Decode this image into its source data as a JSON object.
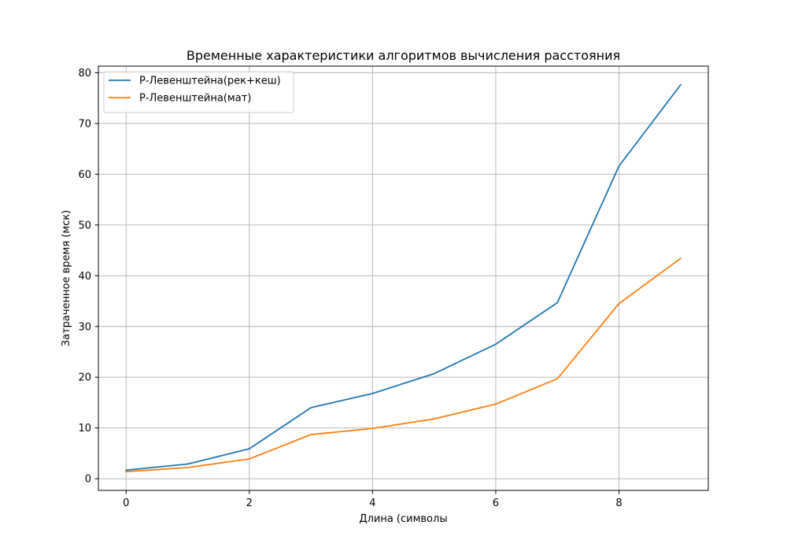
{
  "chart_data": {
    "type": "line",
    "title": "Временные характеристики алгоритмов вычисления расстояния",
    "xlabel": "Длина (символы",
    "ylabel": "Затраченное время (мск)",
    "x": [
      0,
      1,
      2,
      3,
      4,
      5,
      6,
      7,
      8,
      9
    ],
    "xlim": [
      -0.45,
      9.45
    ],
    "ylim": [
      -2.3,
      81.3
    ],
    "xticks": [
      0,
      2,
      4,
      6,
      8
    ],
    "yticks": [
      0,
      10,
      20,
      30,
      40,
      50,
      60,
      70,
      80
    ],
    "grid": true,
    "legend_position": "upper-left",
    "series": [
      {
        "name": "Р-Левенштейна(рек+кеш)",
        "color": "#1f77b4",
        "values": [
          1.7,
          2.9,
          5.9,
          14.0,
          16.8,
          20.7,
          26.5,
          34.7,
          61.6,
          77.6
        ]
      },
      {
        "name": "Р-Левенштейна(мат)",
        "color": "#ff7f0e",
        "values": [
          1.4,
          2.2,
          3.9,
          8.7,
          9.9,
          11.8,
          14.7,
          19.7,
          34.5,
          43.4
        ]
      }
    ]
  }
}
